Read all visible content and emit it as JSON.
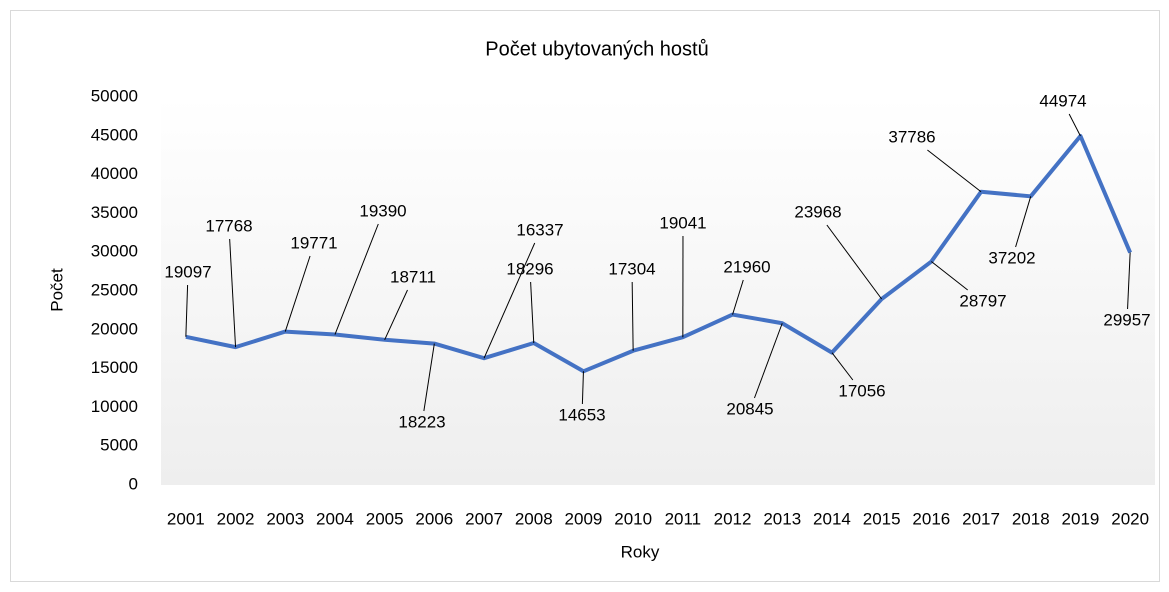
{
  "chart_data": {
    "type": "line",
    "title": "Počet ubytovaných hostů",
    "x_label": "Roky",
    "y_label": "Počet",
    "categories": [
      "2001",
      "2002",
      "2003",
      "2004",
      "2005",
      "2006",
      "2007",
      "2008",
      "2009",
      "2010",
      "2011",
      "2012",
      "2013",
      "2014",
      "2015",
      "2016",
      "2017",
      "2018",
      "2019",
      "2020"
    ],
    "series": [
      {
        "name": "Počet",
        "color": "#4472c4",
        "values": [
          19097,
          17768,
          19771,
          19390,
          18711,
          18223,
          16337,
          18296,
          14653,
          17304,
          19041,
          21960,
          20845,
          17056,
          23968,
          28797,
          37786,
          37202,
          44974,
          29957
        ]
      }
    ],
    "ylim": [
      0,
      50000
    ],
    "yticks": [
      0,
      5000,
      10000,
      15000,
      20000,
      25000,
      30000,
      35000,
      40000,
      45000,
      50000
    ]
  }
}
